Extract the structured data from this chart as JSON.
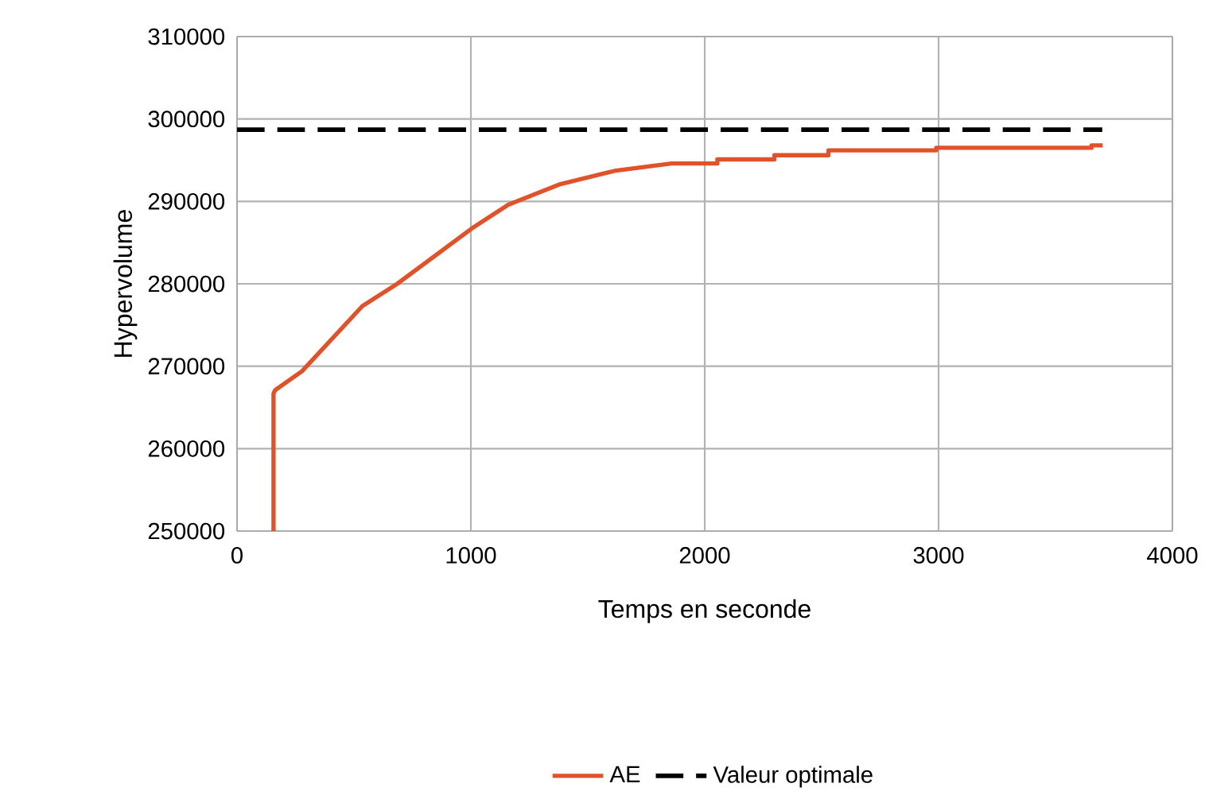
{
  "chart_data": {
    "type": "line",
    "xlabel": "Temps en seconde",
    "ylabel": "Hypervolume",
    "xlim": [
      0,
      4000
    ],
    "ylim": [
      250000,
      310000
    ],
    "xticks": [
      0,
      1000,
      2000,
      3000,
      4000
    ],
    "yticks": [
      250000,
      260000,
      270000,
      280000,
      290000,
      300000,
      310000
    ],
    "grid": true,
    "legend": "bottom",
    "marker": "none",
    "series": [
      {
        "name": "AE",
        "color": "#e0522a",
        "line_style": "solid",
        "x": [
          156,
          156,
          163,
          278,
          536,
          685,
          1003,
          1160,
          1383,
          1614,
          1858,
          1905,
          2054,
          2054,
          2298,
          2298,
          2529,
          2529,
          2990,
          2990,
          3654,
          3654,
          3702
        ],
        "values": [
          250000,
          266700,
          267100,
          269400,
          277300,
          280000,
          286700,
          289600,
          292100,
          293700,
          294600,
          294600,
          294600,
          295100,
          295100,
          295600,
          295600,
          296200,
          296200,
          296500,
          296500,
          296800,
          296800
        ]
      },
      {
        "name": "Valeur optimale",
        "color": "#000000",
        "line_style": "dashed",
        "x": [
          0,
          3700
        ],
        "values": [
          298700,
          298700
        ]
      }
    ]
  }
}
